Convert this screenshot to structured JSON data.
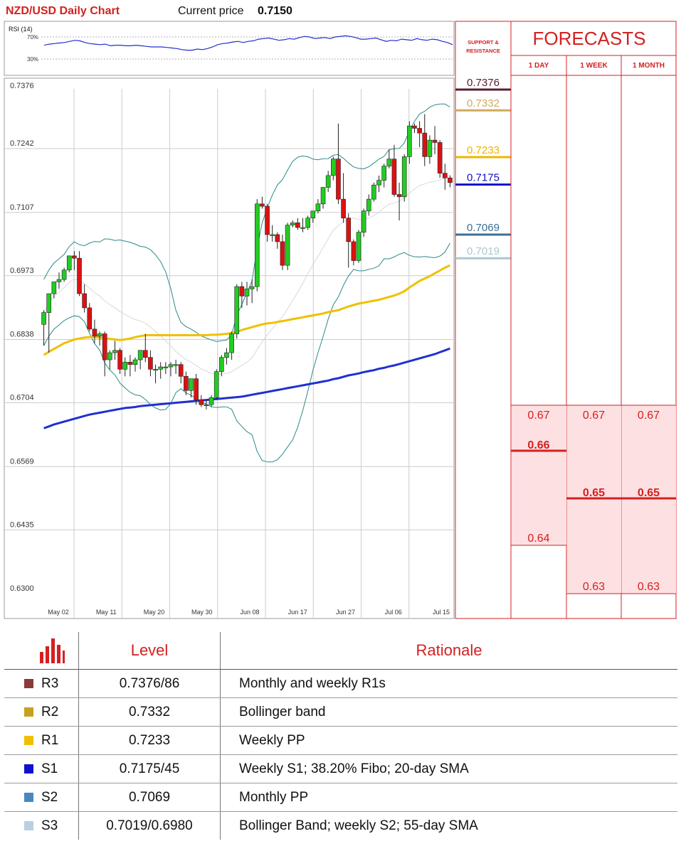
{
  "header": {
    "title": "NZD/USD Daily Chart",
    "price_label": "Current price",
    "price_value": "0.7150"
  },
  "rsi": {
    "label": "RSI (14)",
    "upper": "70%",
    "lower": "30%",
    "values": [
      55,
      57,
      58,
      59,
      60,
      62,
      64,
      63,
      60,
      58,
      57,
      56,
      57,
      54,
      55,
      55,
      54,
      54,
      55,
      54,
      53,
      52,
      52,
      52,
      51,
      50,
      49,
      47,
      46,
      46,
      48,
      47,
      49,
      52,
      56,
      58,
      59,
      61,
      62,
      60,
      62,
      63,
      66,
      67,
      68,
      66,
      64,
      65,
      67,
      66,
      69,
      71,
      70,
      67,
      68,
      69,
      67,
      70,
      71,
      72,
      71,
      69,
      66,
      66,
      67,
      68,
      65,
      62,
      64,
      63,
      66,
      65,
      64,
      67,
      65,
      64,
      66,
      65,
      62,
      60,
      56
    ]
  },
  "chart_data": {
    "type": "candlestick",
    "y_ticks": [
      "0.7376",
      "0.7242",
      "0.7107",
      "0.6973",
      "0.6838",
      "0.6704",
      "0.6569",
      "0.6435",
      "0.6300"
    ],
    "ylim": [
      0.63,
      0.7376
    ],
    "x_ticks": [
      "May 02",
      "May 11",
      "May 20",
      "May 30",
      "Jun 08",
      "Jun 17",
      "Jun 27",
      "Jul 06",
      "Jul 15"
    ],
    "candles": [
      [
        0.687,
        0.69,
        0.6825,
        0.6895
      ],
      [
        0.6895,
        0.6935,
        0.681,
        0.6935
      ],
      [
        0.6935,
        0.696,
        0.6925,
        0.696
      ],
      [
        0.696,
        0.698,
        0.6945,
        0.6965
      ],
      [
        0.6965,
        0.699,
        0.696,
        0.6985
      ],
      [
        0.6985,
        0.7015,
        0.698,
        0.7015
      ],
      [
        0.7015,
        0.7025,
        0.6985,
        0.701
      ],
      [
        0.701,
        0.7025,
        0.693,
        0.6935
      ],
      [
        0.6935,
        0.6955,
        0.6895,
        0.6905
      ],
      [
        0.6905,
        0.6915,
        0.6855,
        0.686
      ],
      [
        0.686,
        0.688,
        0.683,
        0.6845
      ],
      [
        0.6845,
        0.6855,
        0.6825,
        0.685
      ],
      [
        0.685,
        0.6855,
        0.676,
        0.6795
      ],
      [
        0.6795,
        0.6815,
        0.6775,
        0.681
      ],
      [
        0.681,
        0.6835,
        0.6795,
        0.6815
      ],
      [
        0.6815,
        0.682,
        0.6765,
        0.6775
      ],
      [
        0.6775,
        0.68,
        0.676,
        0.679
      ],
      [
        0.679,
        0.6805,
        0.676,
        0.6785
      ],
      [
        0.6785,
        0.68,
        0.677,
        0.6795
      ],
      [
        0.6795,
        0.681,
        0.6775,
        0.6815
      ],
      [
        0.6815,
        0.685,
        0.679,
        0.68
      ],
      [
        0.68,
        0.6815,
        0.676,
        0.6775
      ],
      [
        0.6775,
        0.6785,
        0.6745,
        0.6775
      ],
      [
        0.6775,
        0.679,
        0.6755,
        0.678
      ],
      [
        0.678,
        0.679,
        0.6765,
        0.678
      ],
      [
        0.678,
        0.679,
        0.676,
        0.6785
      ],
      [
        0.6785,
        0.6795,
        0.6765,
        0.6785
      ],
      [
        0.6785,
        0.679,
        0.6745,
        0.676
      ],
      [
        0.676,
        0.677,
        0.672,
        0.673
      ],
      [
        0.673,
        0.6755,
        0.6715,
        0.6755
      ],
      [
        0.6755,
        0.6765,
        0.67,
        0.671
      ],
      [
        0.671,
        0.672,
        0.6695,
        0.67
      ],
      [
        0.67,
        0.671,
        0.669,
        0.67
      ],
      [
        0.67,
        0.672,
        0.6695,
        0.6715
      ],
      [
        0.6715,
        0.6775,
        0.671,
        0.677
      ],
      [
        0.677,
        0.6805,
        0.676,
        0.68
      ],
      [
        0.68,
        0.682,
        0.6785,
        0.681
      ],
      [
        0.681,
        0.6855,
        0.6795,
        0.685
      ],
      [
        0.685,
        0.6955,
        0.684,
        0.695
      ],
      [
        0.695,
        0.696,
        0.6905,
        0.693
      ],
      [
        0.693,
        0.696,
        0.691,
        0.6945
      ],
      [
        0.6945,
        0.6965,
        0.6915,
        0.695
      ],
      [
        0.695,
        0.7135,
        0.694,
        0.7125
      ],
      [
        0.7125,
        0.714,
        0.7115,
        0.712
      ],
      [
        0.712,
        0.7125,
        0.7045,
        0.706
      ],
      [
        0.706,
        0.708,
        0.7045,
        0.706
      ],
      [
        0.706,
        0.7065,
        0.703,
        0.7045
      ],
      [
        0.7045,
        0.706,
        0.6985,
        0.6995
      ],
      [
        0.6995,
        0.7085,
        0.6985,
        0.708
      ],
      [
        0.708,
        0.709,
        0.7075,
        0.7085
      ],
      [
        0.7085,
        0.7095,
        0.707,
        0.7075
      ],
      [
        0.7075,
        0.7095,
        0.7065,
        0.7075
      ],
      [
        0.7075,
        0.71,
        0.707,
        0.7095
      ],
      [
        0.7095,
        0.711,
        0.7085,
        0.711
      ],
      [
        0.711,
        0.7135,
        0.7105,
        0.7125
      ],
      [
        0.7125,
        0.716,
        0.7115,
        0.716
      ],
      [
        0.716,
        0.7195,
        0.715,
        0.7185
      ],
      [
        0.7185,
        0.7225,
        0.7175,
        0.722
      ],
      [
        0.722,
        0.7295,
        0.7125,
        0.7135
      ],
      [
        0.7135,
        0.719,
        0.7085,
        0.7095
      ],
      [
        0.7095,
        0.7105,
        0.699,
        0.7045
      ],
      [
        0.7045,
        0.705,
        0.6995,
        0.7005
      ],
      [
        0.7005,
        0.707,
        0.7,
        0.7065
      ],
      [
        0.7065,
        0.7115,
        0.7055,
        0.711
      ],
      [
        0.711,
        0.7145,
        0.71,
        0.7135
      ],
      [
        0.7135,
        0.717,
        0.713,
        0.7165
      ],
      [
        0.7165,
        0.7185,
        0.715,
        0.7175
      ],
      [
        0.7175,
        0.721,
        0.716,
        0.7205
      ],
      [
        0.7205,
        0.724,
        0.72,
        0.722
      ],
      [
        0.722,
        0.725,
        0.714,
        0.7145
      ],
      [
        0.7145,
        0.717,
        0.709,
        0.714
      ],
      [
        0.714,
        0.723,
        0.713,
        0.7225
      ],
      [
        0.7225,
        0.73,
        0.721,
        0.729
      ],
      [
        0.729,
        0.7295,
        0.7275,
        0.7285
      ],
      [
        0.7285,
        0.73,
        0.7245,
        0.7275
      ],
      [
        0.7275,
        0.7315,
        0.7205,
        0.7225
      ],
      [
        0.7225,
        0.727,
        0.721,
        0.726
      ],
      [
        0.726,
        0.729,
        0.723,
        0.7255
      ],
      [
        0.7255,
        0.726,
        0.718,
        0.719
      ],
      [
        0.719,
        0.721,
        0.7155,
        0.718
      ],
      [
        0.718,
        0.7185,
        0.716,
        0.717
      ]
    ],
    "sma_55": [
      0.6805,
      0.6812,
      0.6818,
      0.6824,
      0.683,
      0.6834,
      0.6838,
      0.684,
      0.6842,
      0.6843,
      0.6843,
      0.6842,
      0.684,
      0.6839,
      0.6838,
      0.6837,
      0.6838,
      0.684,
      0.6843,
      0.6845,
      0.6847,
      0.6847,
      0.6847,
      0.6847,
      0.6847,
      0.6847,
      0.6847,
      0.6847,
      0.6847,
      0.6847,
      0.6847,
      0.6847,
      0.6847,
      0.6848,
      0.6848,
      0.6849,
      0.685,
      0.6852,
      0.6854,
      0.6858,
      0.6861,
      0.6864,
      0.6867,
      0.687,
      0.6872,
      0.6873,
      0.6875,
      0.6877,
      0.6879,
      0.6881,
      0.6883,
      0.6885,
      0.6887,
      0.6889,
      0.6891,
      0.6893,
      0.6896,
      0.6898,
      0.69,
      0.6904,
      0.6908,
      0.6911,
      0.6914,
      0.6916,
      0.6918,
      0.692,
      0.6922,
      0.6925,
      0.6928,
      0.6931,
      0.6935,
      0.694,
      0.6948,
      0.6955,
      0.6962,
      0.6967,
      0.6972,
      0.6978,
      0.6984,
      0.699,
      0.6995
    ],
    "sma_200": [
      0.665,
      0.6654,
      0.6658,
      0.6661,
      0.6664,
      0.6667,
      0.667,
      0.6673,
      0.6676,
      0.6679,
      0.6681,
      0.6683,
      0.6685,
      0.6687,
      0.6689,
      0.6691,
      0.6693,
      0.6694,
      0.6695,
      0.6697,
      0.6698,
      0.6699,
      0.67,
      0.6701,
      0.6702,
      0.6703,
      0.6704,
      0.6705,
      0.6706,
      0.6707,
      0.6708,
      0.6709,
      0.671,
      0.6711,
      0.6712,
      0.6713,
      0.6714,
      0.6715,
      0.6716,
      0.6717,
      0.6719,
      0.6721,
      0.6723,
      0.6725,
      0.6727,
      0.6729,
      0.6731,
      0.6733,
      0.6735,
      0.6737,
      0.6739,
      0.6741,
      0.6743,
      0.6745,
      0.6747,
      0.6749,
      0.6751,
      0.6754,
      0.6756,
      0.6759,
      0.6762,
      0.6764,
      0.6766,
      0.6769,
      0.6771,
      0.6773,
      0.6776,
      0.6778,
      0.6781,
      0.6783,
      0.6786,
      0.6789,
      0.6792,
      0.6795,
      0.6798,
      0.6801,
      0.6804,
      0.6807,
      0.6811,
      0.6815,
      0.6819
    ]
  },
  "support_resistance": {
    "header": "SUPPORT & RESISTANCE",
    "levels": [
      {
        "label": "0.7376",
        "value": 0.7376,
        "color": "#5a1a30"
      },
      {
        "label": "0.7332",
        "value": 0.7332,
        "color": "#d2a860"
      },
      {
        "label": "0.7233",
        "value": 0.7233,
        "color": "#f0b400"
      },
      {
        "label": "0.7175",
        "value": 0.7175,
        "color": "#1010c8"
      },
      {
        "label": "0.7069",
        "value": 0.7069,
        "color": "#3a6e96"
      },
      {
        "label": "0.7019",
        "value": 0.7019,
        "color": "#a8c8d0"
      }
    ]
  },
  "forecasts": {
    "title": "FORECASTS",
    "columns": [
      {
        "header": "1 DAY",
        "top": "0.67",
        "target": "0.66",
        "bottom": "0.64"
      },
      {
        "header": "1 WEEK",
        "top": "0.67",
        "target": "0.65",
        "bottom": "0.63"
      },
      {
        "header": "1 MONTH",
        "top": "0.67",
        "target": "0.65",
        "bottom": "0.63"
      }
    ]
  },
  "levels_table": {
    "headers": {
      "level": "Level",
      "rationale": "Rationale"
    },
    "rows": [
      {
        "name": "R3",
        "color": "#8b3a3a",
        "level": "0.7376/86",
        "rationale": "Monthly and weekly R1s"
      },
      {
        "name": "R2",
        "color": "#c8a020",
        "level": "0.7332",
        "rationale": "Bollinger band"
      },
      {
        "name": "R1",
        "color": "#f0c000",
        "level": "0.7233",
        "rationale": "Weekly PP"
      },
      {
        "name": "S1",
        "color": "#1010d0",
        "level": "0.7175/45",
        "rationale": "Weekly S1; 38.20% Fibo; 20-day SMA"
      },
      {
        "name": "S2",
        "color": "#4a86c0",
        "level": "0.7069",
        "rationale": "Monthly PP"
      },
      {
        "name": "S3",
        "color": "#b8d0e0",
        "level": "0.7019/0.6980",
        "rationale": "Bollinger Band; weekly S2; 55-day SMA"
      }
    ]
  }
}
